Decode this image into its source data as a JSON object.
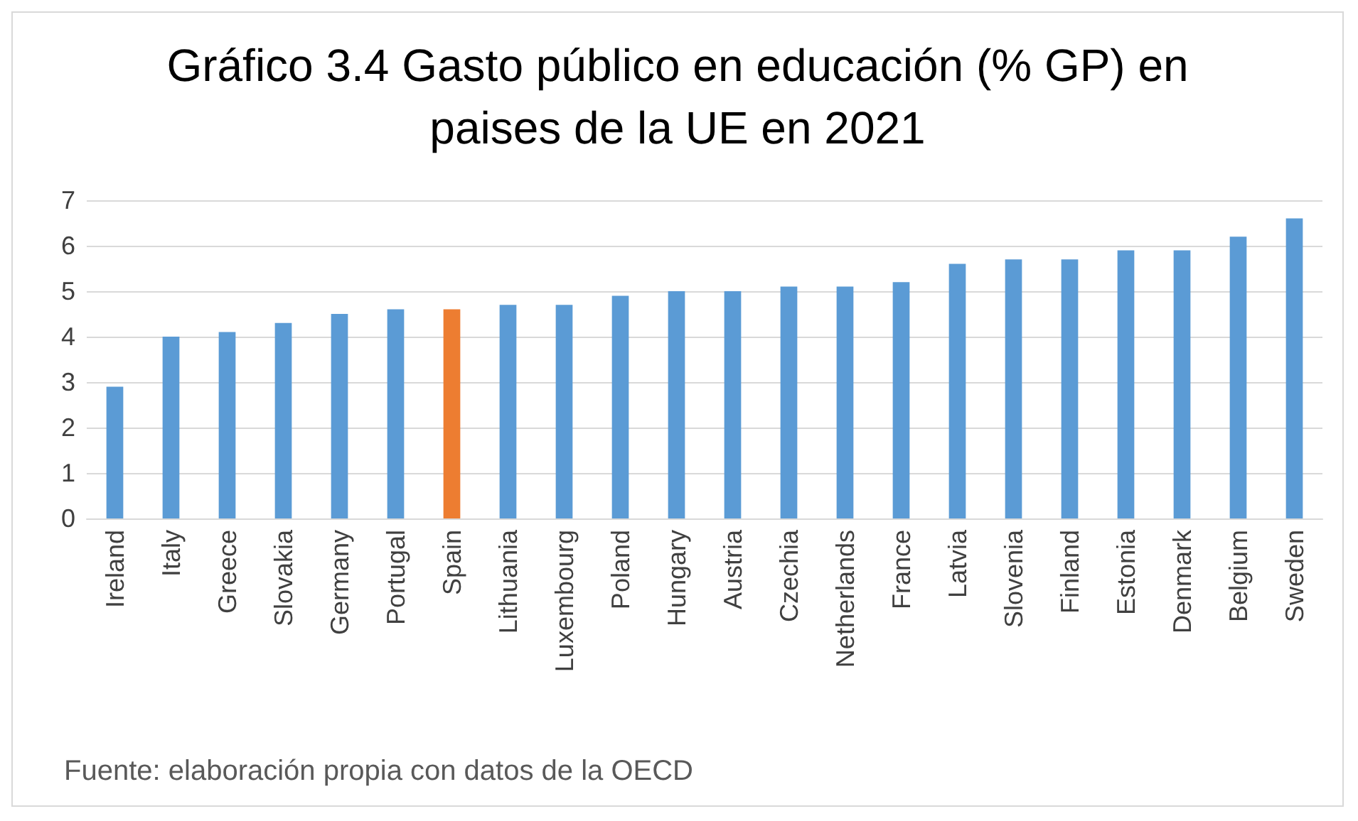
{
  "chart_data": {
    "type": "bar",
    "title": "Gráfico 3.4 Gasto público en educación (% GP) en\npaises de la UE en 2021",
    "categories": [
      "Ireland",
      "Italy",
      "Greece",
      "Slovakia",
      "Germany",
      "Portugal",
      "Spain",
      "Lithuania",
      "Luxembourg",
      "Poland",
      "Hungary",
      "Austria",
      "Czechia",
      "Netherlands",
      "France",
      "Latvia",
      "Slovenia",
      "Finland",
      "Estonia",
      "Denmark",
      "Belgium",
      "Sweden"
    ],
    "values": [
      2.9,
      4.0,
      4.1,
      4.3,
      4.5,
      4.6,
      4.6,
      4.7,
      4.7,
      4.9,
      5.0,
      5.0,
      5.1,
      5.1,
      5.2,
      5.6,
      5.7,
      5.7,
      5.9,
      5.9,
      6.2,
      6.6
    ],
    "colors": [
      "#5b9bd5",
      "#5b9bd5",
      "#5b9bd5",
      "#5b9bd5",
      "#5b9bd5",
      "#5b9bd5",
      "#ed7d31",
      "#5b9bd5",
      "#5b9bd5",
      "#5b9bd5",
      "#5b9bd5",
      "#5b9bd5",
      "#5b9bd5",
      "#5b9bd5",
      "#5b9bd5",
      "#5b9bd5",
      "#5b9bd5",
      "#5b9bd5",
      "#5b9bd5",
      "#5b9bd5",
      "#5b9bd5",
      "#5b9bd5"
    ],
    "ylim": [
      0,
      7
    ],
    "yticks": [
      0,
      1,
      2,
      3,
      4,
      5,
      6,
      7
    ],
    "grid": "y",
    "annotations": [
      "Fuente: elaboración propia con datos de la OECD"
    ]
  }
}
